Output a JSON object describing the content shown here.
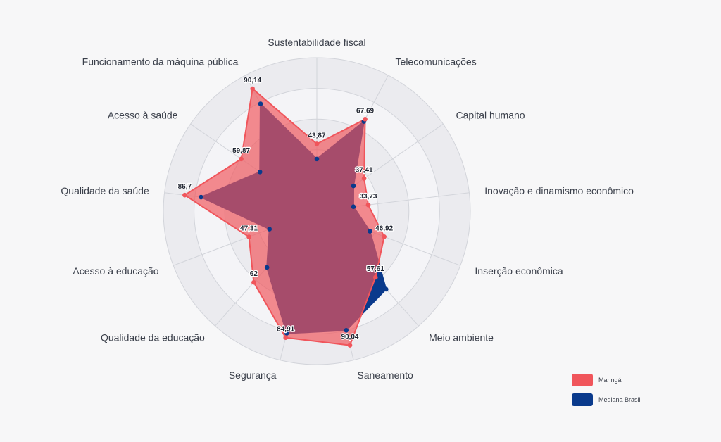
{
  "chart_data": {
    "type": "radar",
    "title": "",
    "axes": [
      "Sustentabilidade fiscal",
      "Telecomunicações",
      "Capital humano",
      "Inovação e dinamismo econômico",
      "Inserção econômica",
      "Meio ambiente",
      "Saneamento",
      "Segurança",
      "Qualidade da educação",
      "Acesso à educação",
      "Qualidade da saúde",
      "Acesso à saúde",
      "Funcionamento da máquina pública"
    ],
    "range": [
      0,
      100
    ],
    "grid_rings": 5,
    "series": [
      {
        "name": "Maringá",
        "color": "#f0555b",
        "values": [
          43.87,
          67.69,
          37.41,
          33.73,
          46.92,
          57.61,
          90.04,
          84.91,
          62,
          47.31,
          86.7,
          59.87,
          90.14
        ],
        "labels": [
          "43,87",
          "67,69",
          "37,41",
          "33,73",
          "46,92",
          "57,61",
          "90,04",
          "84,91",
          "62",
          "47,31",
          "86,7",
          "59,87",
          "90,14"
        ]
      },
      {
        "name": "Mediana Brasil",
        "color": "#0a3a8c",
        "values": [
          34,
          66,
          29,
          24,
          37,
          68,
          80,
          82,
          49,
          33,
          76,
          45,
          79
        ]
      }
    ],
    "legend_position": "bottom-right"
  }
}
